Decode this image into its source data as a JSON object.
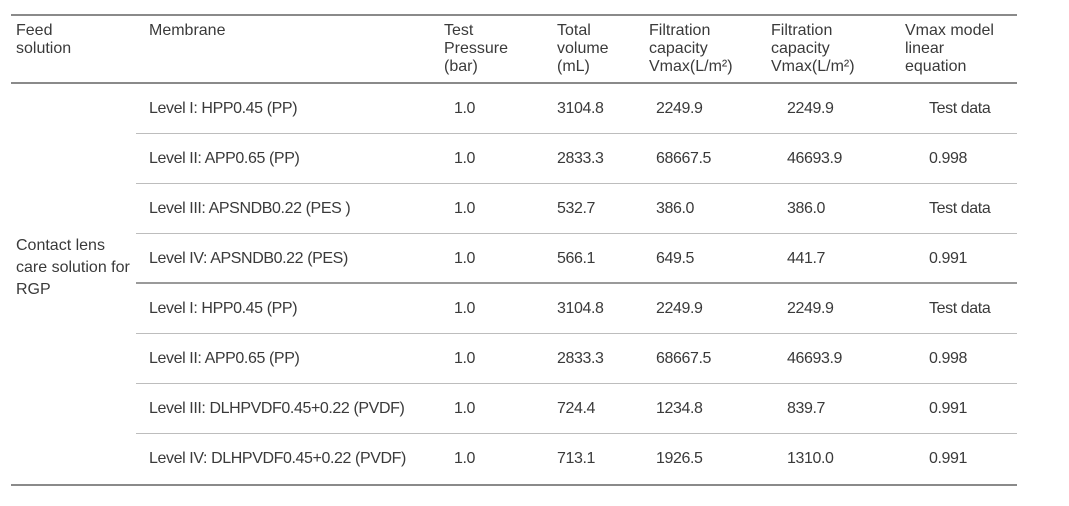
{
  "table": {
    "headers": {
      "feed": "Feed\nsolution",
      "membrane": "Membrane",
      "pressure": "Test\nPressure\n(bar)",
      "volume": "Total\nvolume\n(mL)",
      "cap1": "Filtration\ncapacity\nVmax(L/m²)",
      "cap2": "Filtration\ncapacity\nVmax(L/m²)",
      "model": "Vmax model\nlinear\nequation"
    },
    "feed_solution": "Contact lens care solution for RGP",
    "rows": [
      {
        "membrane": "Level I: HPP0.45 (PP)",
        "pressure": "1.0",
        "volume": "3104.8",
        "cap1": "2249.9",
        "cap2": "2249.9",
        "model": "Test data"
      },
      {
        "membrane": "Level II:  APP0.65 (PP)",
        "pressure": "1.0",
        "volume": "2833.3",
        "cap1": "68667.5",
        "cap2": "46693.9",
        "model": "0.998"
      },
      {
        "membrane": "Level III: APSNDB0.22 (PES )",
        "pressure": "1.0",
        "volume": "532.7",
        "cap1": "386.0",
        "cap2": "386.0",
        "model": "Test data"
      },
      {
        "membrane": "Level IV: APSNDB0.22 (PES)",
        "pressure": "1.0",
        "volume": "566.1",
        "cap1": "649.5",
        "cap2": "441.7",
        "model": "0.991"
      },
      {
        "membrane": "Level I: HPP0.45 (PP)",
        "pressure": "1.0",
        "volume": "3104.8",
        "cap1": "2249.9",
        "cap2": "2249.9",
        "model": "Test data"
      },
      {
        "membrane": "Level II: APP0.65 (PP)",
        "pressure": "1.0",
        "volume": "2833.3",
        "cap1": "68667.5",
        "cap2": "46693.9",
        "model": "0.998"
      },
      {
        "membrane": "Level III: DLHPVDF0.45+0.22 (PVDF)",
        "pressure": "1.0",
        "volume": "724.4",
        "cap1": "1234.8",
        "cap2": "839.7",
        "model": "0.991"
      },
      {
        "membrane": "Level IV: DLHPVDF0.45+0.22 (PVDF)",
        "pressure": "1.0",
        "volume": "713.1",
        "cap1": "1926.5",
        "cap2": "1310.0",
        "model": "0.991"
      }
    ]
  }
}
